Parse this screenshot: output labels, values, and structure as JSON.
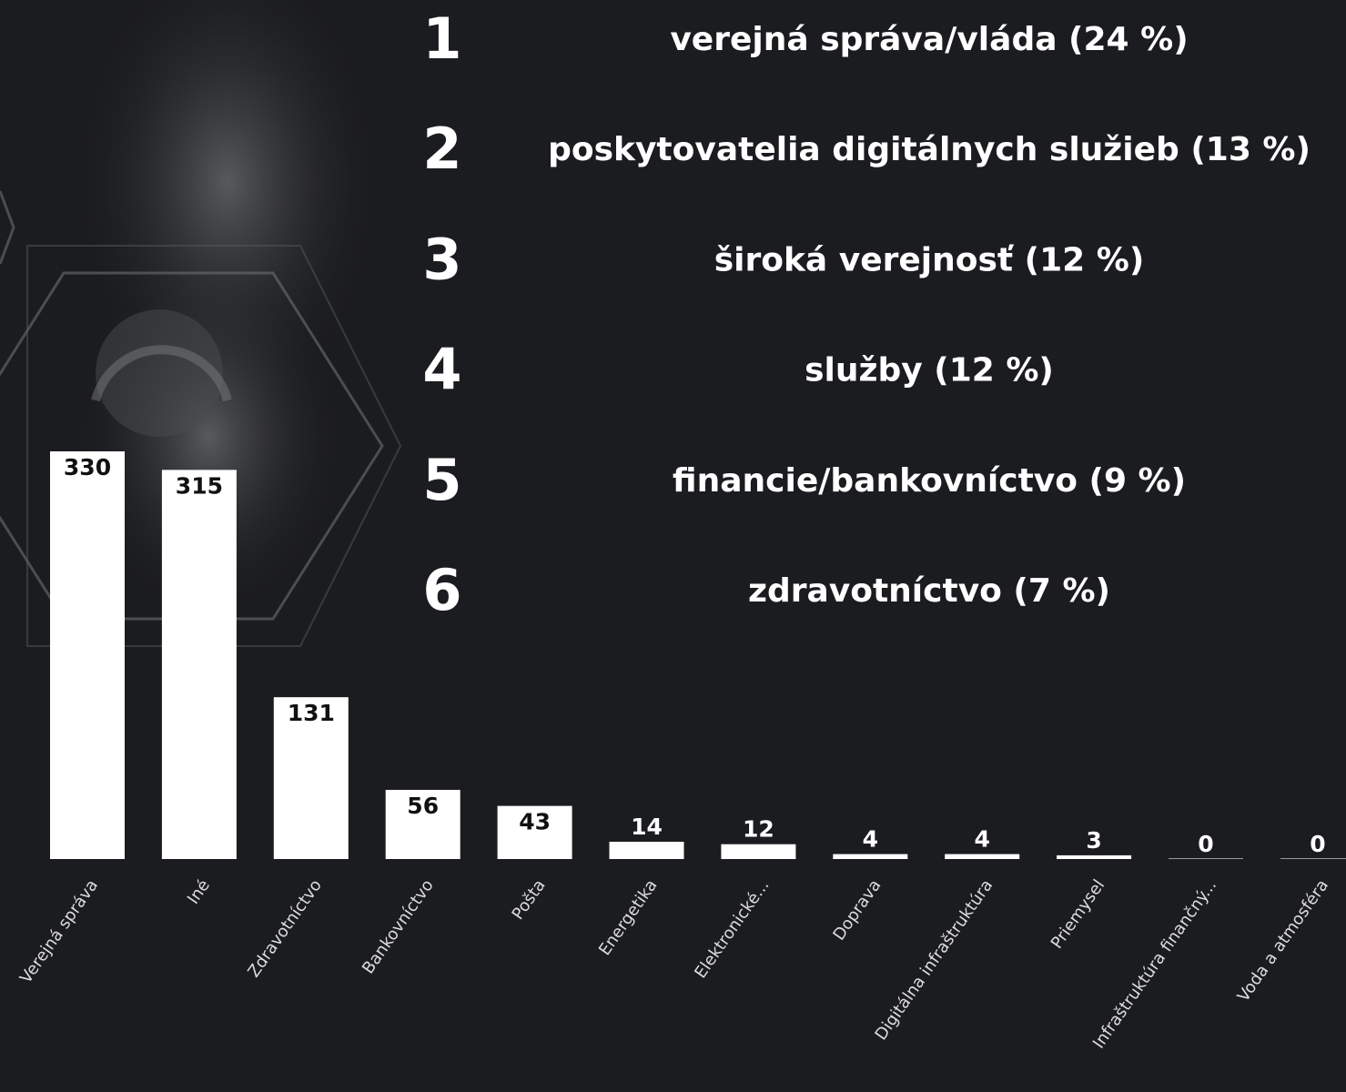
{
  "chart_data": {
    "type": "bar",
    "categories": [
      "Verejná správa",
      "Iné",
      "Zdravotníctvo",
      "Bankovníctvo",
      "Pošta",
      "Energetika",
      "Elektronické...",
      "Doprava",
      "Digitálna infraštruktúra",
      "Priemysel",
      "Infraštruktúra finančný...",
      "Voda a atmosféra"
    ],
    "values": [
      330,
      315,
      131,
      56,
      43,
      14,
      12,
      4,
      4,
      3,
      0,
      0
    ],
    "color": "#ffffff"
  },
  "ranking": [
    {
      "rank": 1,
      "text": "verejná správa/vláda (24 %)"
    },
    {
      "rank": 2,
      "text": "poskytovatelia digitálnych služieb (13 %)"
    },
    {
      "rank": 3,
      "text": "široká verejnosť (12 %)"
    },
    {
      "rank": 4,
      "text": "služby (12 %)"
    },
    {
      "rank": 5,
      "text": "financie/bankovníctvo (9 %)"
    },
    {
      "rank": 6,
      "text": "zdravotníctvo (7 %)"
    }
  ]
}
